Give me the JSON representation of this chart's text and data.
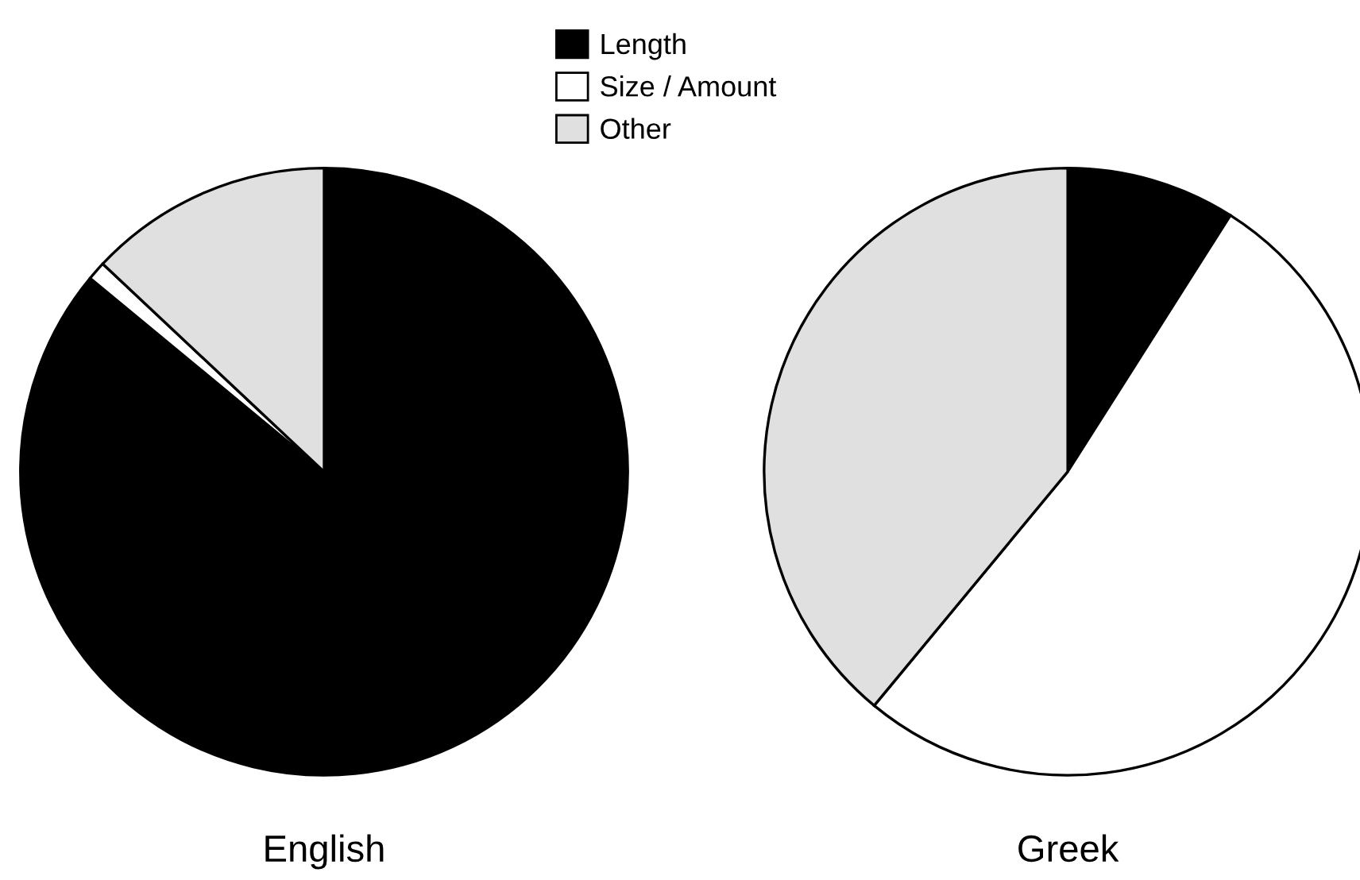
{
  "chart_data": [
    {
      "type": "pie",
      "title": "English",
      "categories": [
        "Length",
        "Size / Amount",
        "Other"
      ],
      "values": [
        86,
        1,
        13
      ],
      "colors": [
        "#000000",
        "#ffffff",
        "#e0e0e0"
      ],
      "legend": "top"
    },
    {
      "type": "pie",
      "title": "Greek",
      "categories": [
        null,
        null,
        null
      ],
      "values": [
        9,
        52,
        39
      ],
      "colors": [
        "#000000",
        "#ffffff",
        "#e0e0e0"
      ]
    }
  ]
}
